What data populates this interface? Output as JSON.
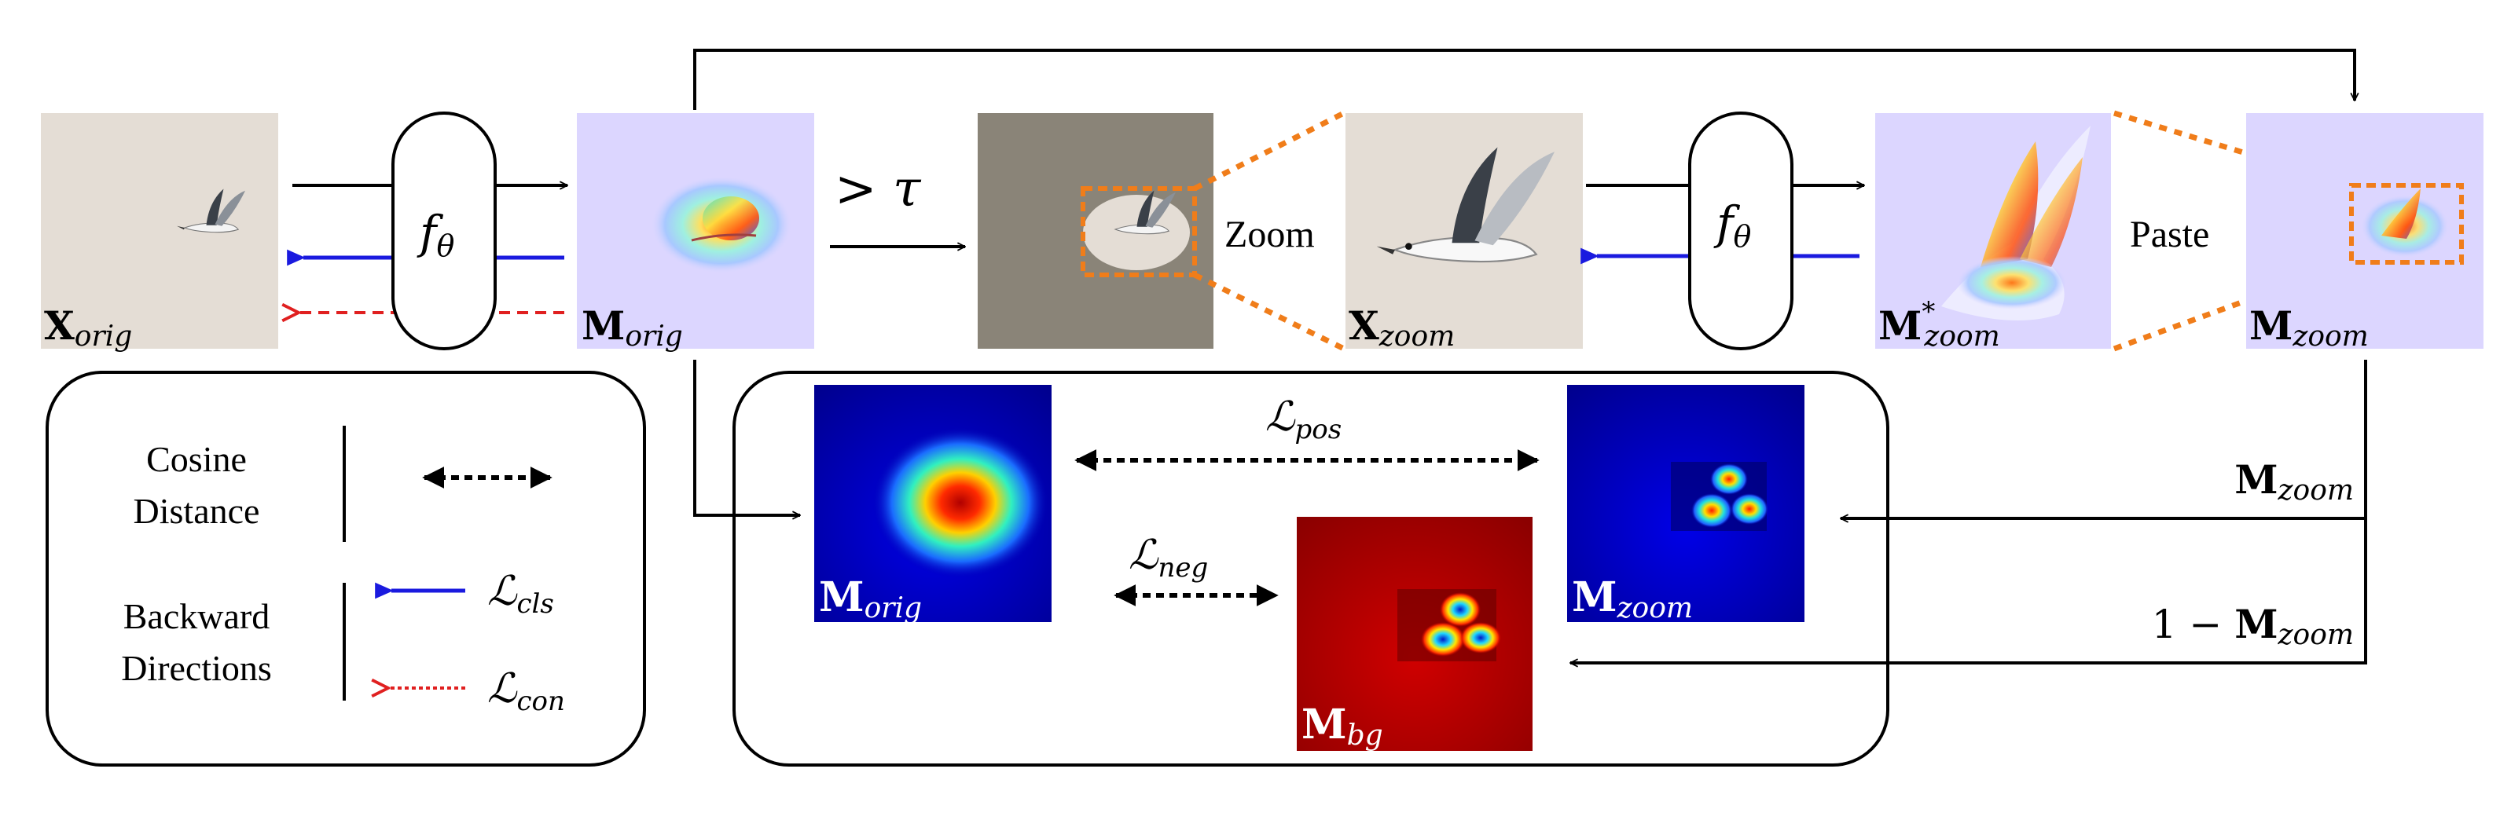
{
  "colors": {
    "stroke": "#000000",
    "cls_arrow": "#1a1adf",
    "con_arrow": "#e02020",
    "zoom_box": "#f07d1a",
    "paste_bg": "#dcd6ff",
    "gray_bg": "#8a8478",
    "sand_bg": "#e4ddd5"
  },
  "top_row": {
    "x_orig": {
      "base": "X",
      "sub": "orig"
    },
    "encoder_1": {
      "base": "f",
      "sub": "θ"
    },
    "m_orig": {
      "base": "M",
      "sub": "orig"
    },
    "threshold": "> τ",
    "zoom_label": "Zoom",
    "x_zoom": {
      "base": "X",
      "sub": "zoom"
    },
    "encoder_2": {
      "base": "f",
      "sub": "θ"
    },
    "m_zoom_star": {
      "base": "M",
      "sup": "*",
      "sub": "zoom"
    },
    "paste_label": "Paste",
    "m_zoom": {
      "base": "M",
      "sub": "zoom"
    }
  },
  "legend": {
    "cosine_line1": "Cosine",
    "cosine_line2": "Distance",
    "backward_line1": "Backward",
    "backward_line2": "Directions",
    "l_cls": {
      "base": "ℒ",
      "sub": "cls"
    },
    "l_con": {
      "base": "ℒ",
      "sub": "con"
    }
  },
  "loss_panel": {
    "m_orig": {
      "base": "M",
      "sub": "orig"
    },
    "m_zoom": {
      "base": "M",
      "sub": "zoom"
    },
    "m_bg": {
      "base": "M",
      "sub": "bg"
    },
    "l_pos": {
      "base": "ℒ",
      "sub": "pos"
    },
    "l_neg": {
      "base": "ℒ",
      "sub": "neg"
    }
  },
  "right_side": {
    "m_zoom_label": {
      "base": "M",
      "sub": "zoom"
    },
    "one_minus_prefix": "1 − ",
    "one_minus_label": {
      "base": "M",
      "sub": "zoom"
    }
  }
}
